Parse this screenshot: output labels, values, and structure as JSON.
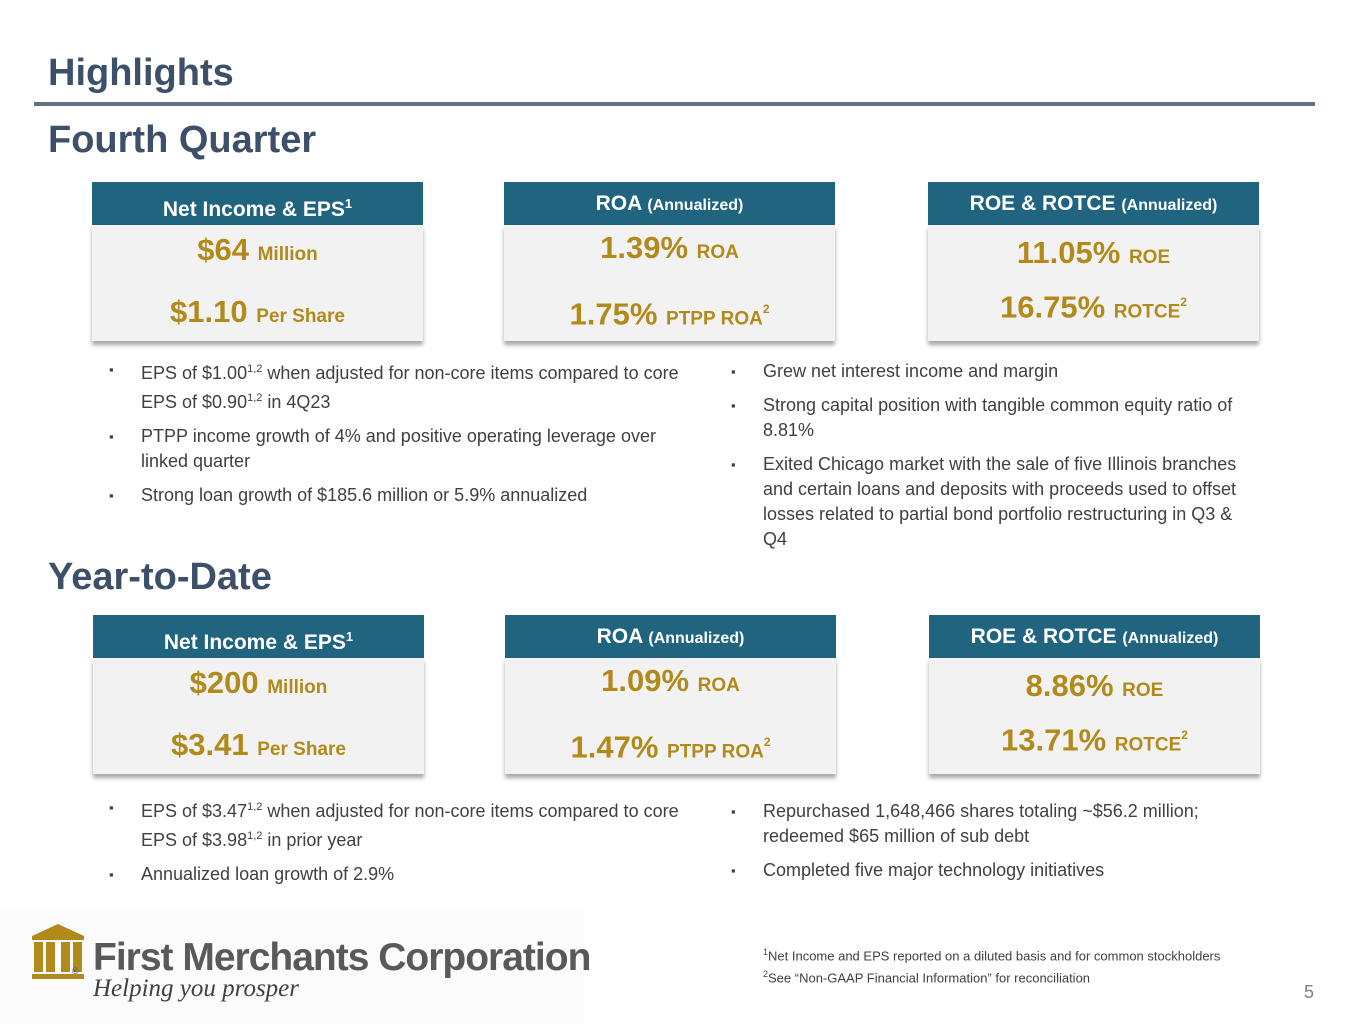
{
  "title": "Highlights",
  "q4": {
    "heading": "Fourth Quarter",
    "cards": [
      {
        "head": "Net Income & EPS",
        "head_sup": "1",
        "head_small": "",
        "lines": [
          {
            "value": "$64",
            "unit": "Million",
            "sup": ""
          },
          {
            "value": "$1.10",
            "unit": "Per Share",
            "sup": ""
          }
        ]
      },
      {
        "head": "ROA",
        "head_sup": "",
        "head_small": "(Annualized)",
        "lines": [
          {
            "value": "1.39%",
            "unit": "ROA",
            "sup": ""
          },
          {
            "value": "1.75%",
            "unit": "PTPP ROA",
            "sup": "2"
          }
        ]
      },
      {
        "head": "ROE & ROTCE",
        "head_sup": "",
        "head_small": "(Annualized)",
        "lines": [
          {
            "value": "11.05%",
            "unit": "ROE",
            "sup": ""
          },
          {
            "value": "16.75%",
            "unit": "ROTCE",
            "sup": "2"
          }
        ]
      }
    ],
    "bullets_left": [
      {
        "a": "EPS of $1.00",
        "sup1": "1,2",
        "b": " when adjusted for non-core items compared to core EPS of $0.90",
        "sup2": "1,2",
        "c": " in 4Q23"
      },
      {
        "a": "PTPP income growth of 4% and positive operating leverage over linked quarter",
        "sup1": "",
        "b": "",
        "sup2": "",
        "c": ""
      },
      {
        "a": "Strong loan growth of $185.6 million or 5.9% annualized",
        "sup1": "",
        "b": "",
        "sup2": "",
        "c": ""
      }
    ],
    "bullets_right": [
      "Grew net interest income and margin",
      "Strong capital position with tangible common equity ratio of 8.81%",
      "Exited Chicago market with the sale of five Illinois branches and certain loans and deposits with proceeds used to offset losses related to partial bond portfolio restructuring in Q3 & Q4"
    ]
  },
  "ytd": {
    "heading": "Year-to-Date",
    "cards": [
      {
        "head": "Net Income & EPS",
        "head_sup": "1",
        "head_small": "",
        "lines": [
          {
            "value": "$200",
            "unit": "Million",
            "sup": ""
          },
          {
            "value": "$3.41",
            "unit": "Per Share",
            "sup": ""
          }
        ]
      },
      {
        "head": "ROA",
        "head_sup": "",
        "head_small": "(Annualized)",
        "lines": [
          {
            "value": "1.09%",
            "unit": "ROA",
            "sup": ""
          },
          {
            "value": "1.47%",
            "unit": "PTPP ROA",
            "sup": "2"
          }
        ]
      },
      {
        "head": "ROE & ROTCE",
        "head_sup": "",
        "head_small": "(Annualized)",
        "lines": [
          {
            "value": "8.86%",
            "unit": "ROE",
            "sup": ""
          },
          {
            "value": "13.71%",
            "unit": "ROTCE",
            "sup": "2"
          }
        ]
      }
    ],
    "bullets_left": [
      {
        "a": "EPS of $3.47",
        "sup1": "1,2",
        "b": " when adjusted for non-core items compared to core EPS of $3.98",
        "sup2": "1,2",
        "c": " in prior year"
      },
      {
        "a": "Annualized loan growth of 2.9%",
        "sup1": "",
        "b": "",
        "sup2": "",
        "c": ""
      }
    ],
    "bullets_right": [
      "Repurchased 1,648,466 shares totaling ~$56.2 million; redeemed $65 million of sub debt",
      "Completed five major technology initiatives"
    ]
  },
  "logo": {
    "name": "First Merchants Corporation",
    "tagline": "Helping you prosper",
    "registered": "®",
    "icon": "building-columns-icon",
    "gold": "#b28a1c"
  },
  "footnotes": [
    {
      "num": "1",
      "text": "Net Income and EPS reported on a diluted basis and for common stockholders"
    },
    {
      "num": "2",
      "text": "See “Non-GAAP Financial Information” for reconciliation"
    }
  ],
  "page_number": "5",
  "colors": {
    "title": "#3d5069",
    "card_header": "#206480",
    "card_body": "#f2f2f2",
    "metric_gold": "#b28a1c",
    "rule": "#627088"
  }
}
